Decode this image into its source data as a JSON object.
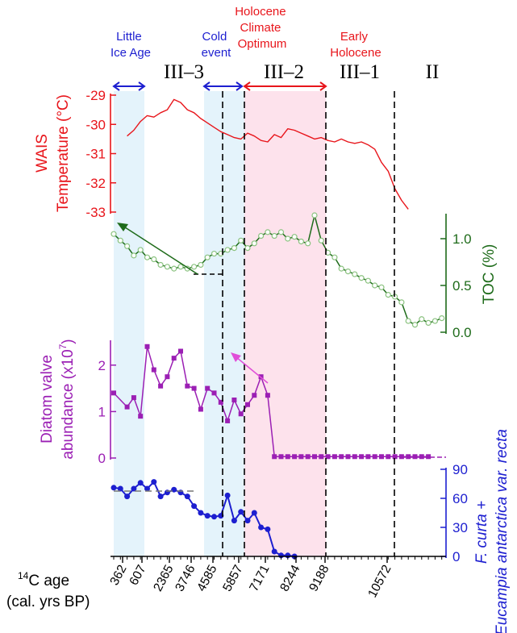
{
  "colors": {
    "temperature": "#e8151b",
    "toc": "#1e6b1a",
    "toc_marker": "#8ac27f",
    "diatom": "#9b1fb4",
    "species": "#1d1fd0",
    "cold_shade": "#e4f3fb",
    "warm_shade": "#fde2ec",
    "cold_label": "#1d1fd0",
    "warm_label": "#e8151b"
  },
  "periods": [
    {
      "id": "little-ice-age",
      "lines": [
        "Little",
        "Ice Age"
      ],
      "tone": "cold"
    },
    {
      "id": "cold-event",
      "lines": [
        "Cold",
        "event"
      ],
      "tone": "cold"
    },
    {
      "id": "holocene-climate-optimum",
      "lines": [
        "Holocene",
        "Climate",
        "Optimum"
      ],
      "tone": "warm"
    },
    {
      "id": "early-holocene",
      "lines": [
        "Early",
        "Holocene"
      ],
      "tone": "warm"
    }
  ],
  "zones": [
    "III–3",
    "III–2",
    "III–1",
    "II"
  ],
  "x_axis": {
    "label_line1_sup": "14",
    "label_line1": "C age",
    "label_line2": "(cal. yrs BP)",
    "ticks": [
      "362",
      "607",
      "2365",
      "3746",
      "4585",
      "5857",
      "7171",
      "8244",
      "9188",
      "10572"
    ]
  },
  "chart_data": [
    {
      "id": "wais-temperature",
      "type": "line",
      "ylabel_line1": "WAIS",
      "ylabel_line2": "Temperature (°C)",
      "ylim": [
        -33,
        -29
      ],
      "yticks": [
        "-29",
        "-30",
        "-31",
        "-32",
        "-33"
      ],
      "x": [
        2,
        3,
        4,
        5,
        6,
        7,
        8,
        9,
        10,
        11,
        12,
        13,
        14,
        15,
        16,
        17,
        18,
        19,
        20,
        21,
        22,
        23,
        24,
        25,
        26,
        27,
        28,
        29,
        30,
        31,
        32,
        33,
        34,
        35,
        36,
        37,
        38,
        39,
        40,
        41,
        42,
        43,
        44
      ],
      "values": [
        -30.4,
        -30.2,
        -29.9,
        -29.7,
        -29.75,
        -29.6,
        -29.5,
        -29.15,
        -29.25,
        -29.5,
        -29.6,
        -29.8,
        -29.95,
        -30.1,
        -30.25,
        -30.35,
        -30.45,
        -30.5,
        -30.3,
        -30.4,
        -30.55,
        -30.6,
        -30.35,
        -30.45,
        -30.15,
        -30.2,
        -30.3,
        -30.4,
        -30.5,
        -30.45,
        -30.55,
        -30.6,
        -30.5,
        -30.6,
        -30.65,
        -30.6,
        -30.7,
        -30.85,
        -31.3,
        -31.6,
        -32.2,
        -32.6,
        -32.9
      ]
    },
    {
      "id": "toc",
      "type": "line",
      "ylabel": "TOC (%)",
      "ylim": [
        0,
        1.25
      ],
      "yticks": [
        "0.0",
        "0.5",
        "1.0"
      ],
      "x": [
        0,
        1,
        2,
        3,
        4,
        5,
        6,
        7,
        8,
        9,
        10,
        11,
        12,
        13,
        14,
        15,
        16,
        17,
        18,
        19,
        20,
        21,
        22,
        23,
        24,
        25,
        26,
        27,
        28,
        29,
        30,
        31,
        32,
        33,
        34,
        35,
        36,
        37,
        38,
        39,
        40,
        41,
        42,
        43,
        44,
        45,
        46,
        47,
        48,
        49
      ],
      "values": [
        1.05,
        0.98,
        0.92,
        0.82,
        0.88,
        0.8,
        0.78,
        0.72,
        0.7,
        0.68,
        0.7,
        0.68,
        0.7,
        0.72,
        0.8,
        0.84,
        0.84,
        0.88,
        0.9,
        0.98,
        0.9,
        0.95,
        1.03,
        1.07,
        1.03,
        1.07,
        1.0,
        1.02,
        0.97,
        0.95,
        1.25,
        0.98,
        0.85,
        0.8,
        0.68,
        0.65,
        0.62,
        0.58,
        0.55,
        0.5,
        0.48,
        0.4,
        0.38,
        0.32,
        0.12,
        0.08,
        0.14,
        0.1,
        0.12,
        0.15
      ]
    },
    {
      "id": "diatom-abundance",
      "type": "line",
      "ylabel_line1": "Diatom valve",
      "ylabel_line2": "abundance (x10",
      "ylabel_sup": "7",
      "ylabel_end": ")",
      "ylim": [
        0,
        2.5
      ],
      "yticks": [
        "2",
        "1",
        "0"
      ],
      "x": [
        0,
        2,
        3,
        4,
        5,
        6,
        7,
        8,
        9,
        10,
        11,
        12,
        13,
        14,
        15,
        16,
        17,
        18,
        19,
        20,
        21,
        22,
        23,
        24,
        25,
        26,
        27,
        28,
        29,
        30,
        31,
        32,
        33,
        34,
        35,
        36,
        37,
        38,
        39,
        40,
        41,
        42,
        43,
        44,
        45,
        46,
        47
      ],
      "values": [
        1.4,
        1.1,
        1.3,
        0.9,
        2.4,
        1.9,
        1.55,
        1.75,
        2.15,
        2.3,
        1.55,
        1.5,
        1.05,
        1.5,
        1.4,
        1.2,
        0.8,
        1.25,
        0.95,
        1.15,
        1.35,
        1.75,
        1.35,
        0.03,
        0.03,
        0.03,
        0.03,
        0.03,
        0.03,
        0.03,
        0.03,
        0.03,
        0.03,
        0.03,
        0.03,
        0.03,
        0.03,
        0.03,
        0.03,
        0.03,
        0.03,
        0.03,
        0.03,
        0.03,
        0.03,
        0.03,
        0.03
      ]
    },
    {
      "id": "fcurta-eucampia",
      "type": "line",
      "ylabel_line1": "F. curta +",
      "ylabel_line2": "Eucampia antarctica var. recta",
      "ylim": [
        0,
        90
      ],
      "yticks": [
        "90",
        "60",
        "30",
        "0"
      ],
      "x": [
        0,
        1,
        2,
        3,
        4,
        5,
        6,
        7,
        8,
        9,
        10,
        11,
        12,
        13,
        14,
        15,
        16,
        17,
        18,
        19,
        20,
        21,
        22,
        23,
        24,
        25,
        26,
        27
      ],
      "values": [
        71,
        70,
        62,
        70,
        76,
        70,
        77,
        62,
        66,
        69,
        66,
        62,
        52,
        45,
        42,
        41,
        42,
        63,
        37,
        46,
        37,
        45,
        30,
        28,
        5,
        1,
        1,
        0
      ]
    }
  ]
}
